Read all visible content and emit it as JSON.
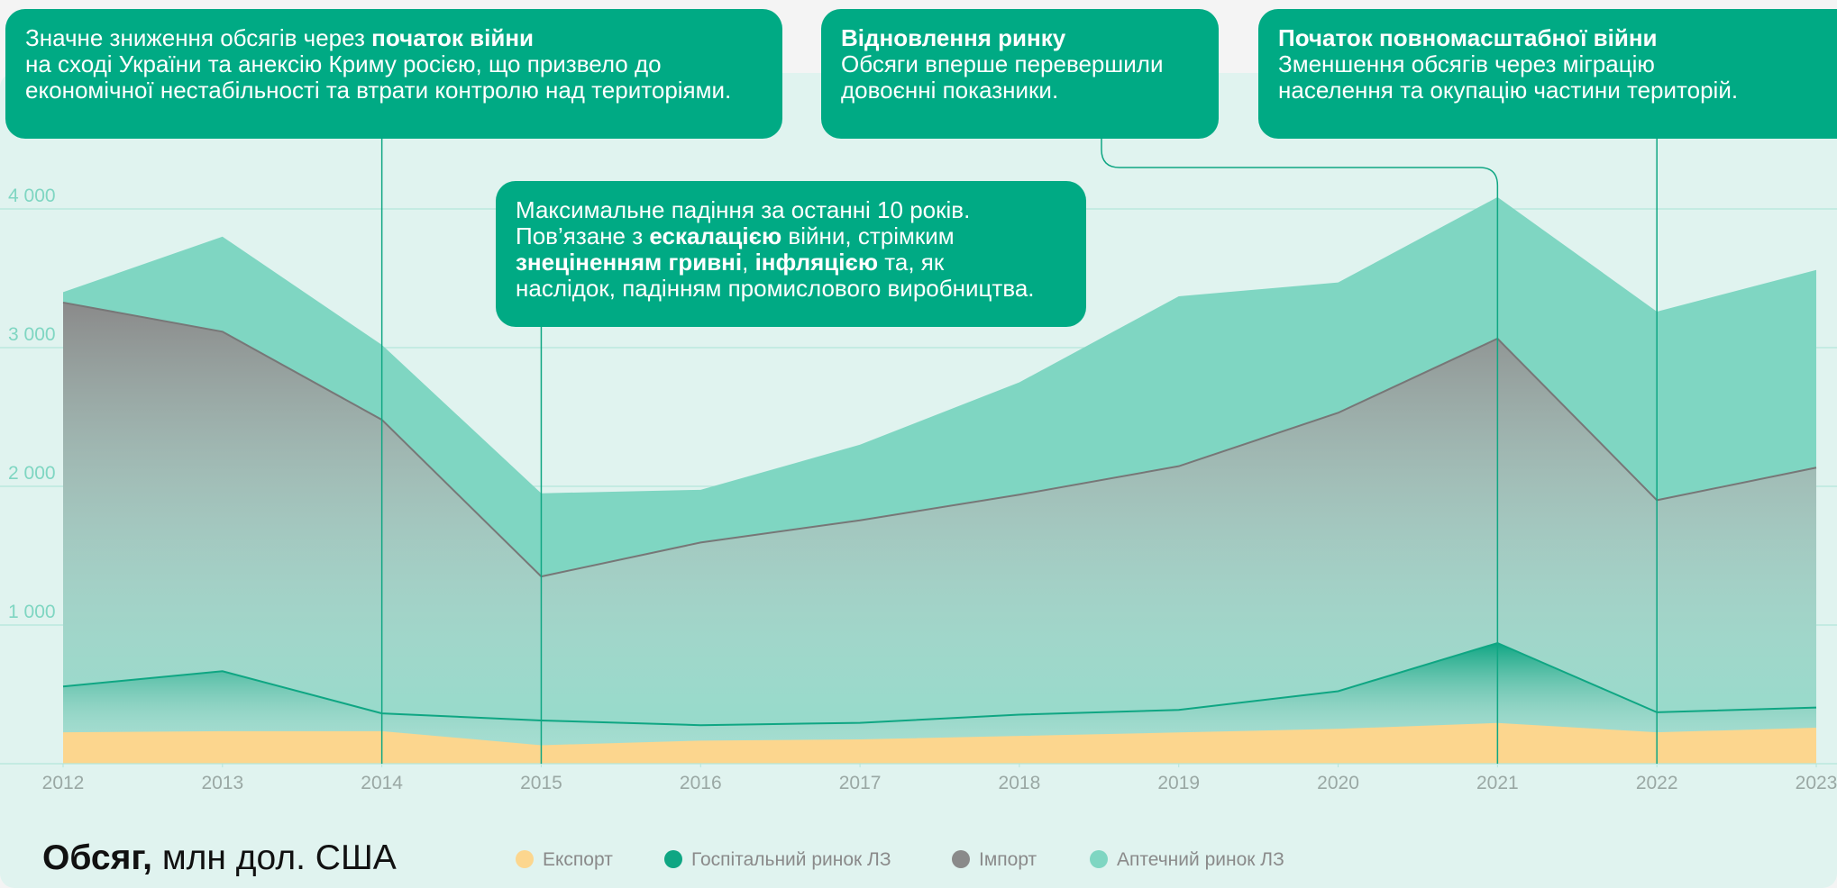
{
  "chart_data": {
    "type": "area",
    "x": [
      2012,
      2013,
      2014,
      2015,
      2016,
      2017,
      2018,
      2019,
      2020,
      2021,
      2022,
      2023
    ],
    "xlim": [
      2012,
      2023
    ],
    "xticks": [
      2012,
      2013,
      2014,
      2015,
      2016,
      2017,
      2018,
      2019,
      2020,
      2021,
      2022,
      2023
    ],
    "ylim": [
      0,
      4500
    ],
    "yticks": [
      {
        "value": 1000,
        "label": "1 000"
      },
      {
        "value": 2000,
        "label": "2 000"
      },
      {
        "value": 3000,
        "label": "3 000"
      },
      {
        "value": 4000,
        "label": "4 000"
      }
    ],
    "grid": true,
    "series": [
      {
        "name": "Аптечний ринок ЛЗ",
        "color": "#7fd6c2",
        "values": [
          3400,
          3800,
          3020,
          1950,
          1975,
          2300,
          2750,
          3370,
          3470,
          4085,
          3260,
          3560
        ]
      },
      {
        "name": "Імпорт",
        "color": "#8a8a8a",
        "values": [
          3325,
          3115,
          2480,
          1350,
          1595,
          1755,
          1940,
          2145,
          2530,
          3065,
          1900,
          2135
        ]
      },
      {
        "name": "Госпітальний ринок ЛЗ",
        "color": "#0fa683",
        "values": [
          557,
          667,
          363,
          312,
          278,
          295,
          354,
          388,
          523,
          870,
          371,
          405
        ]
      },
      {
        "name": "Експорт",
        "color": "#fcd68e",
        "values": [
          220,
          228,
          228,
          127,
          160,
          169,
          194,
          219,
          245,
          287,
          220,
          253
        ]
      }
    ],
    "legend_order": [
      3,
      2,
      1,
      0
    ],
    "axis_title": [
      {
        "text": "Обсяг,",
        "bold": true
      },
      {
        "text": " млн дол. США"
      }
    ],
    "annotations": [
      {
        "x": 2014,
        "lines": [
          [
            {
              "text": "Значне зниження обсягів через "
            },
            {
              "text": "початок війни",
              "bold": true
            }
          ],
          [
            {
              "text": "на сході України та анексію Криму росією, що призвело до"
            }
          ],
          [
            {
              "text": "економічної нестабільності та втрати контролю над територіями."
            }
          ]
        ]
      },
      {
        "x": 2021,
        "lines": [
          [
            {
              "text": "Відновлення ринку",
              "bold": true
            }
          ],
          [
            {
              "text": "Обсяги вперше перевершили"
            }
          ],
          [
            {
              "text": "довоєнні показники."
            }
          ]
        ]
      },
      {
        "x": 2022,
        "lines": [
          [
            {
              "text": "Початок повномасштабної війни",
              "bold": true
            }
          ],
          [
            {
              "text": "Зменшення обсягів через міграцію"
            }
          ],
          [
            {
              "text": "населення та окупацію частини територій."
            }
          ]
        ]
      },
      {
        "x": 2015,
        "lines": [
          [
            {
              "text": "Максимальне падіння за останні 10 років."
            }
          ],
          [
            {
              "text": "Пов’язане з "
            },
            {
              "text": "ескалацією",
              "bold": true
            },
            {
              "text": " війни, стрімким"
            }
          ],
          [
            {
              "text": "знеціненням гривні",
              "bold": true
            },
            {
              "text": ", "
            },
            {
              "text": "інфляцією",
              "bold": true
            },
            {
              "text": " та, як"
            }
          ],
          [
            {
              "text": "наслідок, падінням промислового виробництва."
            }
          ]
        ]
      }
    ]
  }
}
